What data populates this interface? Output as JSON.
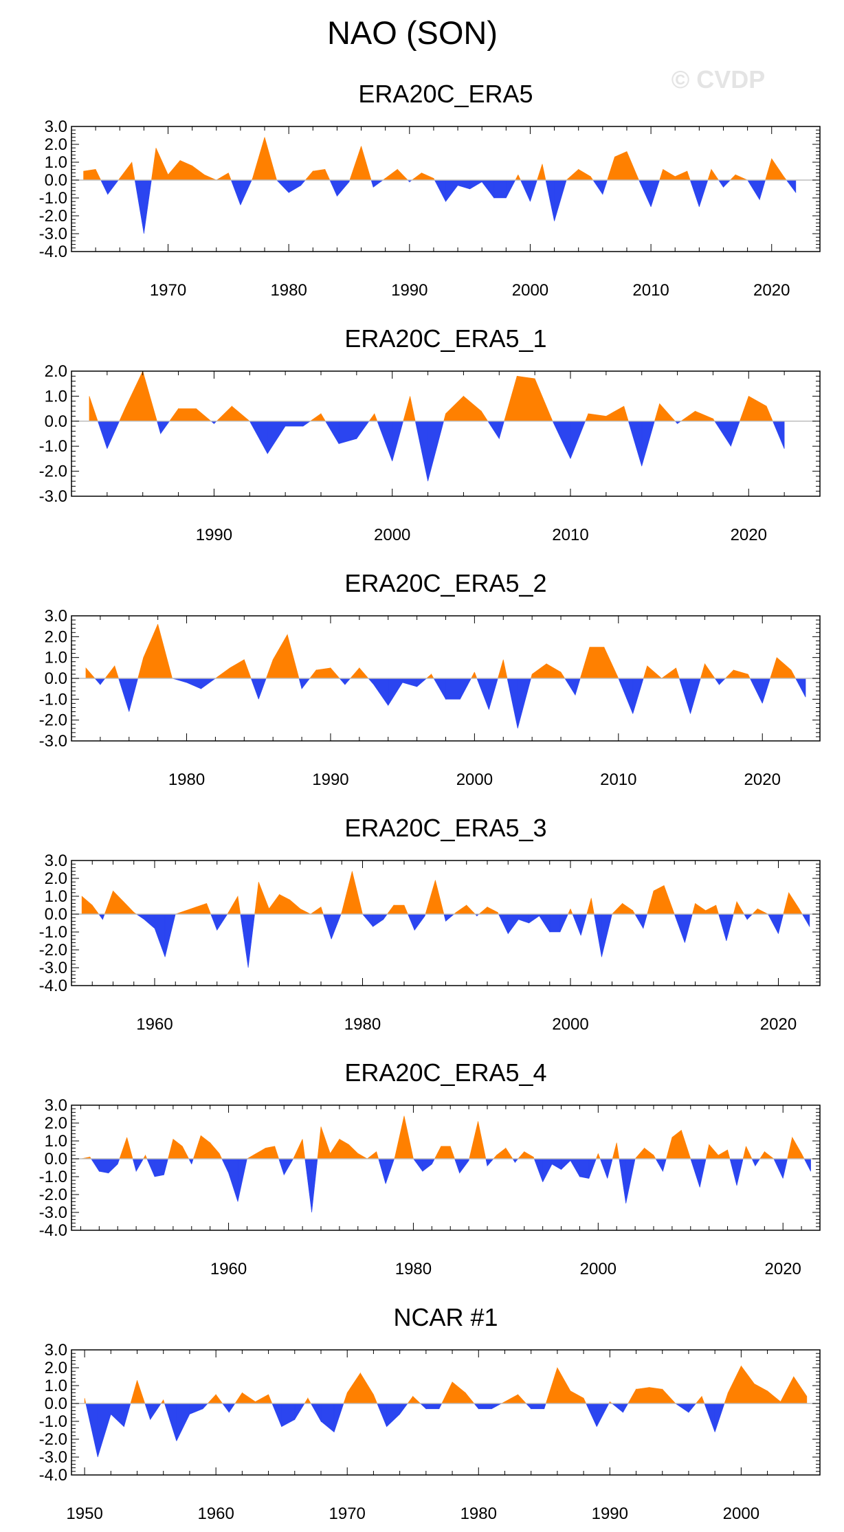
{
  "figure": {
    "title": "NAO (SON)",
    "watermark": "© CVDP",
    "colors": {
      "positive": "#ff8000",
      "negative": "#2b45f0",
      "axis": "#000000",
      "zero_line": "#bdbdbd"
    }
  },
  "chart_data": [
    {
      "type": "area",
      "title": "ERA20C_ERA5",
      "xlabel": "",
      "ylabel": "",
      "xlim": [
        1962,
        2024
      ],
      "ylim": [
        -4.0,
        3.0
      ],
      "yticks": [
        3.0,
        2.0,
        1.0,
        0.0,
        -1.0,
        -2.0,
        -3.0,
        -4.0
      ],
      "yticklabels": [
        "3.0",
        "2.0",
        "1.0",
        "0.0",
        "-1.0",
        "-2.0",
        "-3.0",
        "-4.0"
      ],
      "xticks": [
        1970,
        1980,
        1990,
        2000,
        2010,
        2020
      ],
      "xticklabels": [
        "1970",
        "1980",
        "1990",
        "2000",
        "2010",
        "2020"
      ],
      "start_year": 1963,
      "values": [
        0.5,
        0.6,
        -0.8,
        0.1,
        1.0,
        -3.0,
        1.8,
        0.3,
        1.1,
        0.8,
        0.3,
        0.0,
        0.4,
        -1.4,
        0.1,
        2.4,
        0.0,
        -0.7,
        -0.3,
        0.5,
        0.6,
        -0.9,
        -0.1,
        1.9,
        -0.4,
        0.1,
        0.6,
        -0.1,
        0.4,
        0.1,
        -1.2,
        -0.3,
        -0.5,
        -0.1,
        -1.0,
        -1.0,
        0.3,
        -1.2,
        0.9,
        -2.3,
        0.0,
        0.6,
        0.2,
        -0.8,
        1.3,
        1.6,
        0.0,
        -1.5,
        0.6,
        0.2,
        0.5,
        -1.5,
        0.6,
        -0.4,
        0.3,
        0.0,
        -1.1,
        1.2,
        0.2,
        -0.7
      ]
    },
    {
      "type": "area",
      "title": "ERA20C_ERA5_1",
      "xlabel": "",
      "ylabel": "",
      "xlim": [
        1982,
        2024
      ],
      "ylim": [
        -3.0,
        2.0
      ],
      "yticks": [
        2.0,
        1.0,
        0.0,
        -1.0,
        -2.0,
        -3.0
      ],
      "yticklabels": [
        "2.0",
        "1.0",
        "0.0",
        "-1.0",
        "-2.0",
        "-3.0"
      ],
      "xticks": [
        1990,
        2000,
        2010,
        2020
      ],
      "xticklabels": [
        "1990",
        "2000",
        "2010",
        "2020"
      ],
      "start_year": 1983,
      "values": [
        1.0,
        -1.1,
        0.5,
        2.0,
        -0.5,
        0.5,
        0.5,
        -0.1,
        0.6,
        0.0,
        -1.3,
        -0.2,
        -0.2,
        0.3,
        -0.9,
        -0.7,
        0.3,
        -1.6,
        1.0,
        -2.4,
        0.3,
        1.0,
        0.4,
        -0.7,
        1.8,
        1.7,
        0.0,
        -1.5,
        0.3,
        0.2,
        0.6,
        -1.8,
        0.7,
        -0.1,
        0.4,
        0.1,
        -1.0,
        1.0,
        0.6,
        -1.1
      ]
    },
    {
      "type": "area",
      "title": "ERA20C_ERA5_2",
      "xlabel": "",
      "ylabel": "",
      "xlim": [
        1972,
        2024
      ],
      "ylim": [
        -3.0,
        3.0
      ],
      "yticks": [
        3.0,
        2.0,
        1.0,
        0.0,
        -1.0,
        -2.0,
        -3.0
      ],
      "yticklabels": [
        "3.0",
        "2.0",
        "1.0",
        "0.0",
        "-1.0",
        "-2.0",
        "-3.0"
      ],
      "xticks": [
        1980,
        1990,
        2000,
        2010,
        2020
      ],
      "xticklabels": [
        "1980",
        "1990",
        "2000",
        "2010",
        "2020"
      ],
      "start_year": 1973,
      "values": [
        0.5,
        -0.3,
        0.6,
        -1.6,
        1.0,
        2.6,
        0.0,
        -0.2,
        -0.5,
        0.0,
        0.5,
        0.9,
        -1.0,
        0.9,
        2.1,
        -0.5,
        0.4,
        0.5,
        -0.3,
        0.5,
        -0.3,
        -1.3,
        -0.2,
        -0.4,
        0.2,
        -1.0,
        -1.0,
        0.3,
        -1.5,
        0.9,
        -2.4,
        0.2,
        0.7,
        0.3,
        -0.8,
        1.5,
        1.5,
        0.0,
        -1.7,
        0.6,
        0.0,
        0.5,
        -1.7,
        0.7,
        -0.3,
        0.4,
        0.2,
        -1.2,
        1.0,
        0.4,
        -0.9
      ]
    },
    {
      "type": "area",
      "title": "ERA20C_ERA5_3",
      "xlabel": "",
      "ylabel": "",
      "xlim": [
        1952,
        2024
      ],
      "ylim": [
        -4.0,
        3.0
      ],
      "yticks": [
        3.0,
        2.0,
        1.0,
        0.0,
        -1.0,
        -2.0,
        -3.0,
        -4.0
      ],
      "yticklabels": [
        "3.0",
        "2.0",
        "1.0",
        "0.0",
        "-1.0",
        "-2.0",
        "-3.0",
        "-4.0"
      ],
      "xticks": [
        1960,
        1980,
        2000,
        2020
      ],
      "xticklabels": [
        "1960",
        "1980",
        "2000",
        "2020"
      ],
      "start_year": 1953,
      "values": [
        1.0,
        0.5,
        -0.3,
        1.3,
        0.7,
        0.1,
        -0.3,
        -0.8,
        -2.4,
        0.0,
        0.2,
        0.4,
        0.6,
        -0.9,
        0.0,
        1.0,
        -3.0,
        1.8,
        0.3,
        1.1,
        0.8,
        0.3,
        0.0,
        0.4,
        -1.4,
        0.1,
        2.4,
        0.0,
        -0.7,
        -0.3,
        0.5,
        0.5,
        -0.9,
        -0.1,
        1.9,
        -0.4,
        0.1,
        0.5,
        -0.1,
        0.4,
        0.1,
        -1.1,
        -0.3,
        -0.5,
        -0.1,
        -1.0,
        -1.0,
        0.3,
        -1.2,
        0.9,
        -2.4,
        0.0,
        0.6,
        0.2,
        -0.8,
        1.3,
        1.6,
        0.0,
        -1.6,
        0.6,
        0.2,
        0.5,
        -1.5,
        0.7,
        -0.3,
        0.3,
        0.0,
        -1.1,
        1.2,
        0.3,
        -0.7
      ]
    },
    {
      "type": "area",
      "title": "ERA20C_ERA5_4",
      "xlabel": "",
      "ylabel": "",
      "xlim": [
        1943,
        2024
      ],
      "ylim": [
        -4.0,
        3.0
      ],
      "yticks": [
        3.0,
        2.0,
        1.0,
        0.0,
        -1.0,
        -2.0,
        -3.0,
        -4.0
      ],
      "yticklabels": [
        "3.0",
        "2.0",
        "1.0",
        "0.0",
        "-1.0",
        "-2.0",
        "-3.0",
        "-4.0"
      ],
      "xticks": [
        1960,
        1980,
        2000,
        2020
      ],
      "xticklabels": [
        "1960",
        "1980",
        "2000",
        "2020"
      ],
      "start_year": 1944,
      "values": [
        0.0,
        0.1,
        -0.7,
        -0.8,
        -0.3,
        1.2,
        -0.7,
        0.2,
        -1.0,
        -0.9,
        1.1,
        0.7,
        -0.3,
        1.3,
        0.9,
        0.3,
        -0.8,
        -2.4,
        0.0,
        0.3,
        0.6,
        0.7,
        -0.9,
        0.0,
        1.1,
        -3.0,
        1.8,
        0.3,
        1.1,
        0.8,
        0.3,
        0.0,
        0.4,
        -1.4,
        0.1,
        2.4,
        0.0,
        -0.7,
        -0.3,
        0.7,
        0.7,
        -0.8,
        -0.1,
        2.1,
        -0.4,
        0.2,
        0.6,
        -0.2,
        0.4,
        0.1,
        -1.3,
        -0.3,
        -0.6,
        -0.1,
        -1.0,
        -1.1,
        0.3,
        -1.1,
        0.9,
        -2.5,
        0.0,
        0.6,
        0.2,
        -0.7,
        1.2,
        1.6,
        0.0,
        -1.6,
        0.8,
        0.2,
        0.5,
        -1.5,
        0.7,
        -0.4,
        0.4,
        0.0,
        -1.1,
        1.2,
        0.3,
        -0.7
      ]
    },
    {
      "type": "area",
      "title": "NCAR #1",
      "xlabel": "",
      "ylabel": "",
      "xlim": [
        1949,
        2006
      ],
      "ylim": [
        -4.0,
        3.0
      ],
      "yticks": [
        3.0,
        2.0,
        1.0,
        0.0,
        -1.0,
        -2.0,
        -3.0,
        -4.0
      ],
      "yticklabels": [
        "3.0",
        "2.0",
        "1.0",
        "0.0",
        "-1.0",
        "-2.0",
        "-3.0",
        "-4.0"
      ],
      "xticks": [
        1950,
        1960,
        1970,
        1980,
        1990,
        2000
      ],
      "xticklabels": [
        "1950",
        "1960",
        "1970",
        "1980",
        "1990",
        "2000"
      ],
      "start_year": 1950,
      "values": [
        0.3,
        -3.0,
        -0.6,
        -1.3,
        1.3,
        -0.9,
        0.2,
        -2.1,
        -0.6,
        -0.3,
        0.5,
        -0.5,
        0.6,
        0.1,
        0.5,
        -1.3,
        -0.9,
        0.3,
        -1.0,
        -1.6,
        0.6,
        1.7,
        0.5,
        -1.3,
        -0.6,
        0.4,
        -0.3,
        -0.3,
        1.2,
        0.6,
        -0.3,
        -0.3,
        0.1,
        0.5,
        -0.3,
        -0.3,
        2.0,
        0.7,
        0.3,
        -1.3,
        0.1,
        -0.5,
        0.8,
        0.9,
        0.8,
        0.0,
        -0.5,
        0.4,
        -1.6,
        0.6,
        2.1,
        1.1,
        0.7,
        0.1,
        1.5,
        0.4
      ]
    }
  ]
}
